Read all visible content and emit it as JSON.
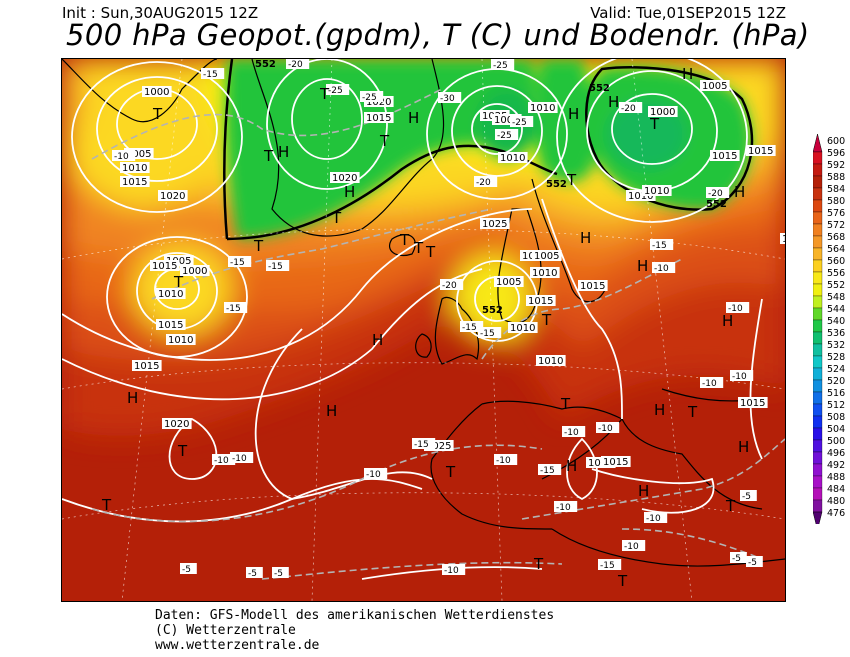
{
  "header": {
    "init": "Init : Sun,30AUG2015 12Z",
    "valid": "Valid: Tue,01SEP2015 12Z",
    "title": "500 hPa Geopot.(gpdm), T (C) und Bodendr. (hPa)"
  },
  "credits": {
    "line1": "Daten: GFS-Modell des amerikanischen Wetterdienstes",
    "line2": "(C) Wetterzentrale",
    "line3": "www.wetterzentrale.de"
  },
  "colorbar": {
    "levels": [
      600,
      596,
      592,
      588,
      584,
      580,
      576,
      572,
      568,
      564,
      560,
      556,
      552,
      548,
      544,
      540,
      536,
      532,
      528,
      524,
      520,
      516,
      512,
      508,
      504,
      500,
      496,
      492,
      488,
      484,
      480,
      476
    ],
    "colors": [
      "#c8003c",
      "#d81020",
      "#c41a10",
      "#b42008",
      "#c83210",
      "#dc4810",
      "#e86418",
      "#f08020",
      "#f49828",
      "#f8b428",
      "#fcd020",
      "#f8e818",
      "#f0f010",
      "#c0f020",
      "#60d828",
      "#20c848",
      "#10c070",
      "#10c0a0",
      "#10c8c8",
      "#10b0d8",
      "#1090e0",
      "#1070e8",
      "#1050f0",
      "#1030f0",
      "#2810e8",
      "#5010e0",
      "#7010d8",
      "#9010d0",
      "#a810c8",
      "#b410b8",
      "#8010a0",
      "#500070"
    ]
  },
  "map": {
    "pressure_labels": [
      "1000",
      "1005",
      "1010",
      "1015",
      "1020",
      "1025",
      "1000",
      "1005",
      "1010",
      "1015",
      "1020",
      "1015",
      "1025",
      "1010",
      "1005",
      "1000",
      "1010",
      "1015",
      "1005",
      "1010",
      "1015",
      "1010",
      "1015",
      "1015",
      "1020",
      "1025",
      "1020",
      "1015",
      "1010",
      "1015",
      "1010",
      "1015",
      "1015",
      "1005",
      "1000",
      "1010",
      "1010",
      "1015",
      "1010",
      "1020"
    ],
    "isohypse_labels": [
      "552",
      "552",
      "552",
      "552",
      "552"
    ],
    "temp_labels": [
      "-15",
      "-20",
      "-25",
      "-25",
      "-30",
      "-25",
      "-20",
      "-25",
      "-25",
      "-20",
      "-20",
      "-15",
      "-15",
      "-15",
      "-15",
      "-20",
      "-15",
      "-10",
      "-10",
      "-15",
      "-15",
      "-10",
      "-10",
      "-10",
      "-10",
      "-10",
      "-15",
      "-10",
      "-10",
      "-10",
      "-10",
      "-10",
      "-10",
      "-5",
      "-5",
      "-5",
      "-5",
      "-5",
      "-10",
      "-15",
      "-10",
      "-5"
    ],
    "centers": [
      "T",
      "T",
      "T",
      "H",
      "H",
      "T",
      "T",
      "H",
      "T",
      "T",
      "T",
      "H",
      "T",
      "H",
      "T",
      "H",
      "H",
      "H",
      "T",
      "T",
      "H",
      "H",
      "T",
      "H",
      "H",
      "H",
      "T",
      "T",
      "T",
      "T",
      "T",
      "H",
      "H",
      "H",
      "T",
      "T",
      "H",
      "T"
    ]
  }
}
